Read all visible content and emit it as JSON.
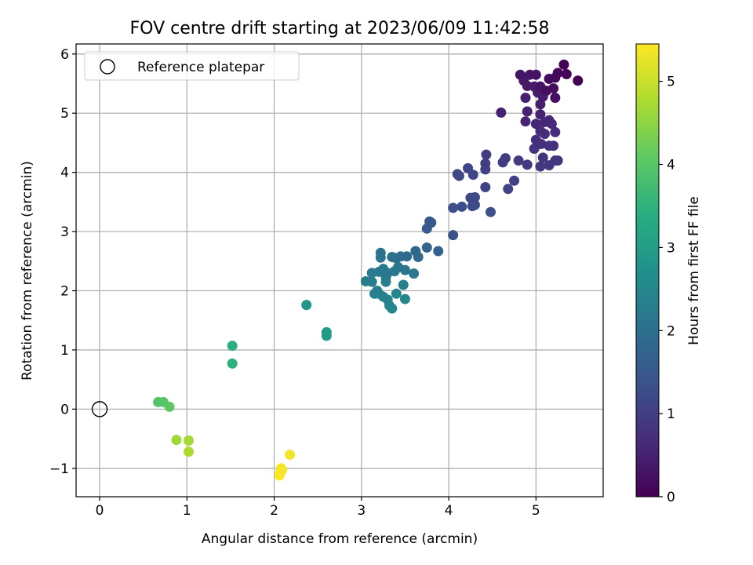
{
  "chart_data": {
    "type": "scatter",
    "title": "FOV centre drift starting at 2023/06/09 11:42:58",
    "xlabel": "Angular distance from reference (arcmin)",
    "ylabel": "Rotation from reference (arcmin)",
    "xlim": [
      -0.27,
      5.77
    ],
    "ylim": [
      -1.48,
      6.17
    ],
    "xticks": [
      0,
      1,
      2,
      3,
      4,
      5
    ],
    "yticks": [
      -1,
      0,
      1,
      2,
      3,
      4,
      5,
      6
    ],
    "grid": true,
    "legend": {
      "placement": "top-left",
      "entries": [
        "Reference platepar"
      ]
    },
    "reference": {
      "x": 0,
      "y": 0
    },
    "colorbar": {
      "label": "Hours from first FF file",
      "colormap": "viridis",
      "range": [
        0,
        5.45
      ],
      "ticks": [
        0,
        1,
        2,
        3,
        4,
        5
      ]
    },
    "points": [
      {
        "x": 5.48,
        "y": 5.55,
        "c": 0.02
      },
      {
        "x": 5.32,
        "y": 5.82,
        "c": 0.05
      },
      {
        "x": 5.35,
        "y": 5.66,
        "c": 0.08
      },
      {
        "x": 5.25,
        "y": 5.68,
        "c": 0.1
      },
      {
        "x": 5.22,
        "y": 5.6,
        "c": 0.12
      },
      {
        "x": 5.15,
        "y": 5.58,
        "c": 0.15
      },
      {
        "x": 5.2,
        "y": 5.42,
        "c": 0.18
      },
      {
        "x": 5.12,
        "y": 5.38,
        "c": 0.2
      },
      {
        "x": 5.22,
        "y": 5.26,
        "c": 0.22
      },
      {
        "x": 5.05,
        "y": 5.45,
        "c": 0.25
      },
      {
        "x": 5.0,
        "y": 5.65,
        "c": 0.27
      },
      {
        "x": 4.93,
        "y": 5.65,
        "c": 0.3
      },
      {
        "x": 4.82,
        "y": 5.65,
        "c": 0.32
      },
      {
        "x": 4.86,
        "y": 5.55,
        "c": 0.35
      },
      {
        "x": 4.9,
        "y": 5.46,
        "c": 0.37
      },
      {
        "x": 4.98,
        "y": 5.45,
        "c": 0.4
      },
      {
        "x": 5.02,
        "y": 5.35,
        "c": 0.42
      },
      {
        "x": 5.08,
        "y": 5.28,
        "c": 0.44
      },
      {
        "x": 4.88,
        "y": 5.26,
        "c": 0.46
      },
      {
        "x": 5.05,
        "y": 5.15,
        "c": 0.48
      },
      {
        "x": 4.6,
        "y": 5.01,
        "c": 0.5
      },
      {
        "x": 4.9,
        "y": 5.03,
        "c": 0.52
      },
      {
        "x": 5.05,
        "y": 4.98,
        "c": 0.54
      },
      {
        "x": 4.88,
        "y": 4.86,
        "c": 0.56
      },
      {
        "x": 5.0,
        "y": 4.82,
        "c": 0.58
      },
      {
        "x": 5.1,
        "y": 4.85,
        "c": 0.6
      },
      {
        "x": 5.15,
        "y": 4.88,
        "c": 0.62
      },
      {
        "x": 5.18,
        "y": 4.82,
        "c": 0.64
      },
      {
        "x": 5.05,
        "y": 4.7,
        "c": 0.66
      },
      {
        "x": 5.22,
        "y": 4.68,
        "c": 0.68
      },
      {
        "x": 5.0,
        "y": 4.55,
        "c": 0.7
      },
      {
        "x": 5.1,
        "y": 4.65,
        "c": 0.72
      },
      {
        "x": 5.06,
        "y": 4.48,
        "c": 0.74
      },
      {
        "x": 5.15,
        "y": 4.45,
        "c": 0.76
      },
      {
        "x": 5.2,
        "y": 4.45,
        "c": 0.78
      },
      {
        "x": 4.98,
        "y": 4.4,
        "c": 0.8
      },
      {
        "x": 5.08,
        "y": 4.25,
        "c": 0.82
      },
      {
        "x": 5.22,
        "y": 4.2,
        "c": 0.84
      },
      {
        "x": 5.25,
        "y": 4.2,
        "c": 0.86
      },
      {
        "x": 5.15,
        "y": 4.12,
        "c": 0.88
      },
      {
        "x": 5.05,
        "y": 4.1,
        "c": 0.9
      },
      {
        "x": 4.8,
        "y": 4.2,
        "c": 0.92
      },
      {
        "x": 4.9,
        "y": 4.13,
        "c": 0.94
      },
      {
        "x": 4.62,
        "y": 4.17,
        "c": 0.96
      },
      {
        "x": 4.65,
        "y": 4.24,
        "c": 0.98
      },
      {
        "x": 4.43,
        "y": 4.3,
        "c": 1.0
      },
      {
        "x": 4.42,
        "y": 4.15,
        "c": 1.02
      },
      {
        "x": 4.42,
        "y": 4.05,
        "c": 1.04
      },
      {
        "x": 4.75,
        "y": 3.86,
        "c": 1.06
      },
      {
        "x": 4.68,
        "y": 3.72,
        "c": 1.08
      },
      {
        "x": 4.42,
        "y": 3.75,
        "c": 1.1
      },
      {
        "x": 4.22,
        "y": 4.07,
        "c": 1.12
      },
      {
        "x": 4.28,
        "y": 3.96,
        "c": 1.14
      },
      {
        "x": 4.1,
        "y": 3.97,
        "c": 1.16
      },
      {
        "x": 4.12,
        "y": 3.94,
        "c": 1.18
      },
      {
        "x": 4.25,
        "y": 3.57,
        "c": 1.2
      },
      {
        "x": 4.3,
        "y": 3.58,
        "c": 1.22
      },
      {
        "x": 4.27,
        "y": 3.43,
        "c": 1.24
      },
      {
        "x": 4.3,
        "y": 3.45,
        "c": 1.26
      },
      {
        "x": 4.15,
        "y": 3.42,
        "c": 1.28
      },
      {
        "x": 4.05,
        "y": 3.4,
        "c": 1.3
      },
      {
        "x": 4.48,
        "y": 3.33,
        "c": 1.32
      },
      {
        "x": 4.05,
        "y": 2.94,
        "c": 1.4
      },
      {
        "x": 3.78,
        "y": 3.17,
        "c": 1.5
      },
      {
        "x": 3.8,
        "y": 3.15,
        "c": 1.52
      },
      {
        "x": 3.75,
        "y": 3.05,
        "c": 1.55
      },
      {
        "x": 3.88,
        "y": 2.67,
        "c": 1.7
      },
      {
        "x": 3.75,
        "y": 2.73,
        "c": 1.75
      },
      {
        "x": 3.62,
        "y": 2.67,
        "c": 1.8
      },
      {
        "x": 3.65,
        "y": 2.57,
        "c": 1.85
      },
      {
        "x": 3.52,
        "y": 2.58,
        "c": 1.9
      },
      {
        "x": 3.45,
        "y": 2.58,
        "c": 1.95
      },
      {
        "x": 3.4,
        "y": 2.55,
        "c": 2.0
      },
      {
        "x": 3.35,
        "y": 2.57,
        "c": 2.02
      },
      {
        "x": 3.22,
        "y": 2.64,
        "c": 2.05
      },
      {
        "x": 3.22,
        "y": 2.56,
        "c": 2.08
      },
      {
        "x": 3.5,
        "y": 2.35,
        "c": 2.1
      },
      {
        "x": 3.6,
        "y": 2.29,
        "c": 2.12
      },
      {
        "x": 3.42,
        "y": 2.4,
        "c": 2.14
      },
      {
        "x": 3.38,
        "y": 2.33,
        "c": 2.16
      },
      {
        "x": 3.3,
        "y": 2.3,
        "c": 2.18
      },
      {
        "x": 3.25,
        "y": 2.37,
        "c": 2.2
      },
      {
        "x": 3.2,
        "y": 2.32,
        "c": 2.22
      },
      {
        "x": 3.12,
        "y": 2.3,
        "c": 2.24
      },
      {
        "x": 3.28,
        "y": 2.22,
        "c": 2.26
      },
      {
        "x": 3.05,
        "y": 2.16,
        "c": 2.28
      },
      {
        "x": 3.12,
        "y": 2.15,
        "c": 2.3
      },
      {
        "x": 3.28,
        "y": 2.15,
        "c": 2.32
      },
      {
        "x": 3.48,
        "y": 2.1,
        "c": 2.34
      },
      {
        "x": 3.18,
        "y": 2.0,
        "c": 2.36
      },
      {
        "x": 3.2,
        "y": 1.95,
        "c": 2.38
      },
      {
        "x": 3.15,
        "y": 1.95,
        "c": 2.4
      },
      {
        "x": 3.25,
        "y": 1.9,
        "c": 2.42
      },
      {
        "x": 3.3,
        "y": 1.85,
        "c": 2.44
      },
      {
        "x": 3.4,
        "y": 1.95,
        "c": 2.46
      },
      {
        "x": 3.32,
        "y": 1.75,
        "c": 2.48
      },
      {
        "x": 3.5,
        "y": 1.86,
        "c": 2.5
      },
      {
        "x": 3.35,
        "y": 1.7,
        "c": 2.52
      },
      {
        "x": 2.37,
        "y": 1.76,
        "c": 2.85
      },
      {
        "x": 2.6,
        "y": 1.3,
        "c": 2.95
      },
      {
        "x": 2.6,
        "y": 1.24,
        "c": 2.98
      },
      {
        "x": 1.52,
        "y": 1.07,
        "c": 3.4
      },
      {
        "x": 1.52,
        "y": 0.77,
        "c": 3.45
      },
      {
        "x": 0.67,
        "y": 0.12,
        "c": 3.95
      },
      {
        "x": 0.73,
        "y": 0.12,
        "c": 4.0
      },
      {
        "x": 0.8,
        "y": 0.04,
        "c": 4.05
      },
      {
        "x": 0.88,
        "y": -0.52,
        "c": 4.65
      },
      {
        "x": 1.02,
        "y": -0.53,
        "c": 4.7
      },
      {
        "x": 1.02,
        "y": -0.72,
        "c": 4.75
      },
      {
        "x": 2.18,
        "y": -0.77,
        "c": 5.35
      },
      {
        "x": 2.08,
        "y": -1.0,
        "c": 5.38
      },
      {
        "x": 2.09,
        "y": -1.03,
        "c": 5.4
      },
      {
        "x": 2.07,
        "y": -1.07,
        "c": 5.42
      },
      {
        "x": 2.06,
        "y": -1.12,
        "c": 5.45
      }
    ]
  }
}
